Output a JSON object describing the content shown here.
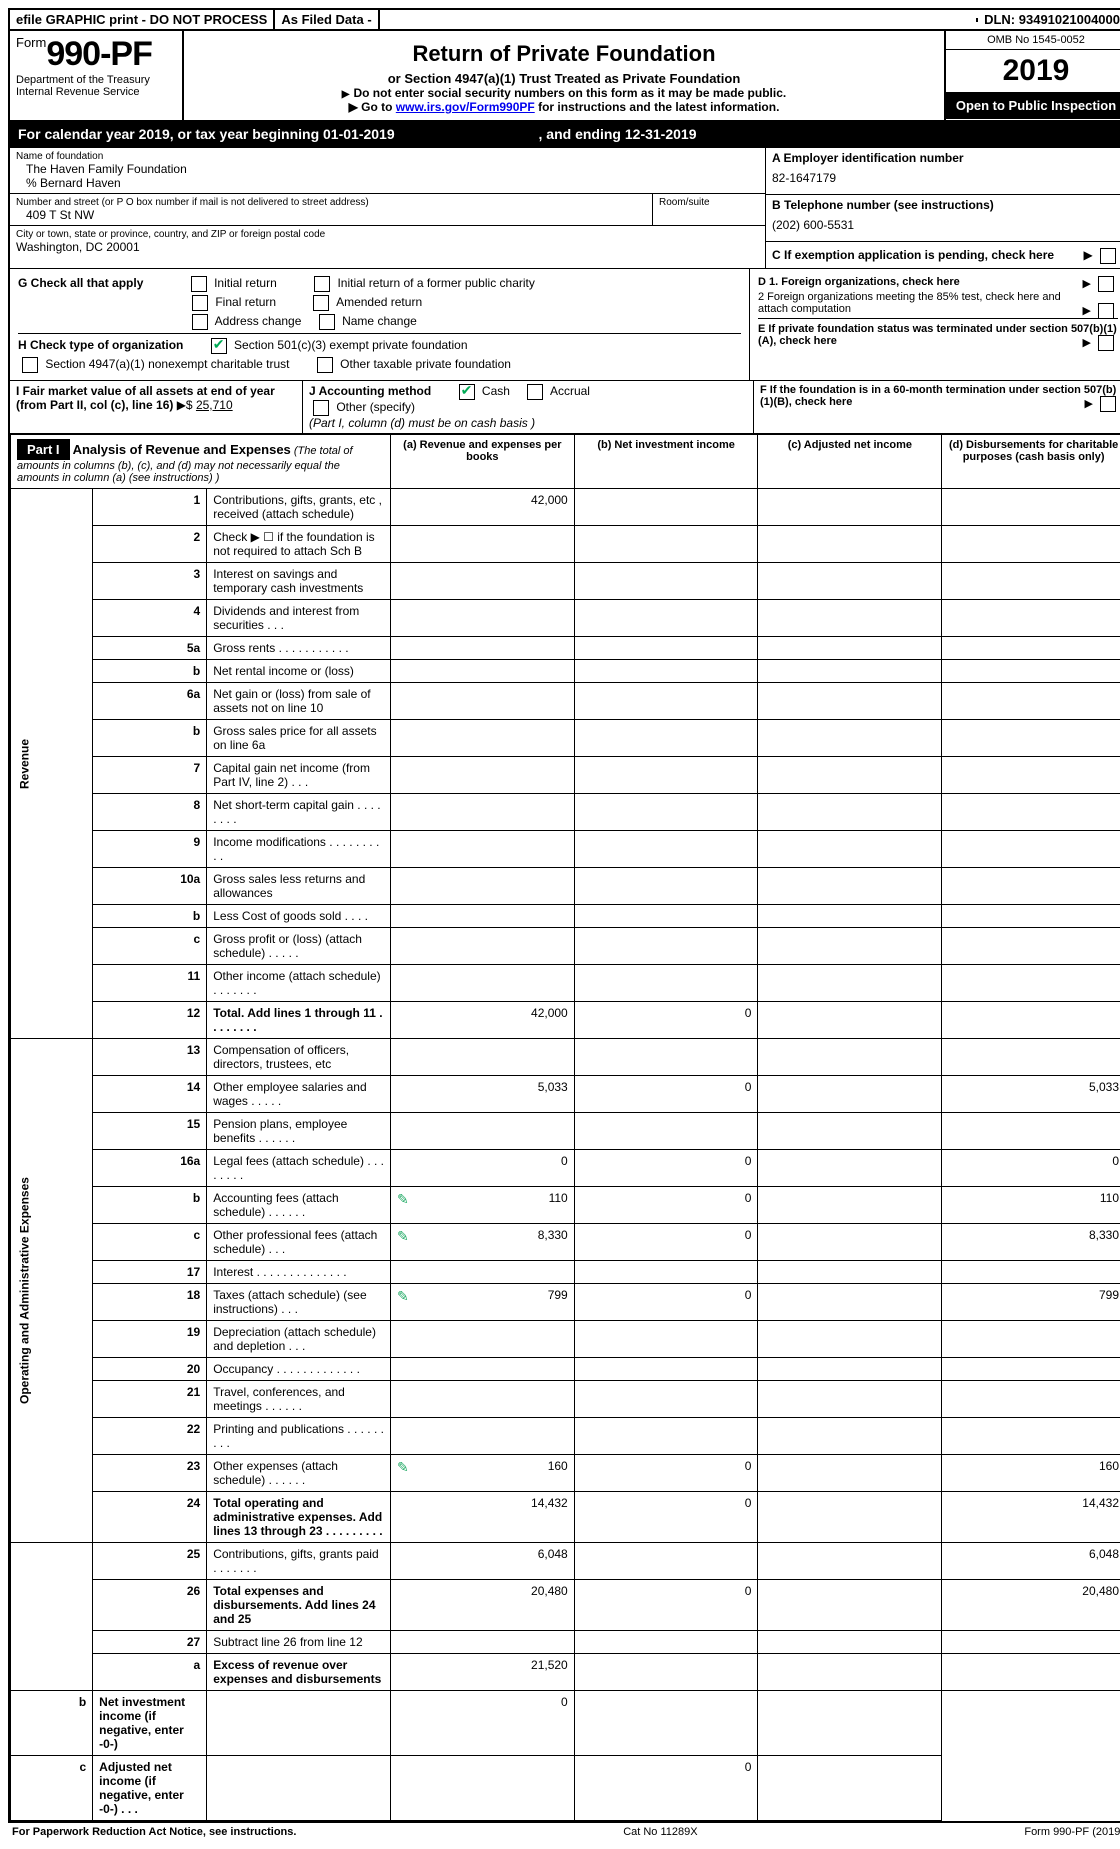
{
  "topbar": {
    "efile": "efile GRAPHIC print - DO NOT PROCESS",
    "asfiled": "As Filed Data -",
    "dln_label": "DLN:",
    "dln": "93491021004000"
  },
  "header": {
    "form_prefix": "Form",
    "form_no": "990-PF",
    "dept": "Department of the Treasury",
    "irs": "Internal Revenue Service",
    "title": "Return of Private Foundation",
    "subtitle": "or Section 4947(a)(1) Trust Treated as Private Foundation",
    "note1": "Do not enter social security numbers on this form as it may be made public.",
    "note2_pre": "Go to ",
    "note2_link": "www.irs.gov/Form990PF",
    "note2_post": " for instructions and the latest information.",
    "omb": "OMB No 1545-0052",
    "year": "2019",
    "open": "Open to Public Inspection"
  },
  "calendar": {
    "text": "For calendar year 2019, or tax year beginning 01-01-2019",
    "ending_lbl": ", and ending ",
    "ending": "12-31-2019"
  },
  "entity": {
    "name_lbl": "Name of foundation",
    "name": "The Haven Family Foundation",
    "co": "% Bernard Haven",
    "addr_lbl": "Number and street (or P O  box number if mail is not delivered to street address)",
    "addr": "409 T St NW",
    "room_lbl": "Room/suite",
    "city_lbl": "City or town, state or province, country, and ZIP or foreign postal code",
    "city": "Washington, DC  20001",
    "a_lbl": "A Employer identification number",
    "a_val": "82-1647179",
    "b_lbl": "B Telephone number (see instructions)",
    "b_val": "(202) 600-5531",
    "c_lbl": "C If exemption application is pending, check here"
  },
  "g": {
    "lbl": "G Check all that apply",
    "opts": [
      "Initial return",
      "Initial return of a former public charity",
      "Final return",
      "Amended return",
      "Address change",
      "Name change"
    ]
  },
  "h": {
    "lbl": "H Check type of organization",
    "opt1": "Section 501(c)(3) exempt private foundation",
    "opt2": "Section 4947(a)(1) nonexempt charitable trust",
    "opt3": "Other taxable private foundation"
  },
  "i": {
    "lbl": "I Fair market value of all assets at end of year (from Part II, col  (c), line 16) ",
    "amt_prefix": "▶$ ",
    "amt": "25,710"
  },
  "j": {
    "lbl": "J Accounting method",
    "cash": "Cash",
    "accrual": "Accrual",
    "other": "Other (specify)",
    "note": "(Part I, column (d) must be on cash basis )"
  },
  "d": {
    "d1": "D 1. Foreign organizations, check here",
    "d2": "2  Foreign organizations meeting the 85% test, check here and attach computation",
    "e": "E  If private foundation status was terminated under section 507(b)(1)(A), check here",
    "f": "F  If the foundation is in a 60-month termination under section 507(b)(1)(B), check here"
  },
  "part1": {
    "label": "Part I",
    "title": "Analysis of Revenue and Expenses",
    "title_note": "(The total of amounts in columns (b), (c), and (d) may not necessarily equal the amounts in column (a) (see instructions) )",
    "col_a": "(a)  Revenue and expenses per books",
    "col_b": "(b)  Net investment income",
    "col_c": "(c)  Adjusted net income",
    "col_d": "(d)  Disbursements for charitable purposes (cash basis only)",
    "side_rev": "Revenue",
    "side_exp": "Operating and Administrative Expenses",
    "rows": [
      {
        "n": "1",
        "d": "Contributions, gifts, grants, etc , received (attach schedule)",
        "a": "42,000",
        "b": "",
        "c": "",
        "dd": ""
      },
      {
        "n": "2",
        "d": "Check ▶ ☐ if the foundation is not required to attach Sch B",
        "a": "",
        "b": "",
        "c": "",
        "dd": ""
      },
      {
        "n": "3",
        "d": "Interest on savings and temporary cash investments",
        "a": "",
        "b": "",
        "c": "",
        "dd": ""
      },
      {
        "n": "4",
        "d": "Dividends and interest from securities   .   .   .",
        "a": "",
        "b": "",
        "c": "",
        "dd": ""
      },
      {
        "n": "5a",
        "d": "Gross rents   .   .   .   .   .   .   .   .   .   .   .",
        "a": "",
        "b": "",
        "c": "",
        "dd": ""
      },
      {
        "n": "b",
        "d": "Net rental income or (loss)  ",
        "a": "",
        "b": "",
        "c": "",
        "dd": ""
      },
      {
        "n": "6a",
        "d": "Net gain or (loss) from sale of assets not on line 10",
        "a": "",
        "b": "",
        "c": "",
        "dd": ""
      },
      {
        "n": "b",
        "d": "Gross sales price for all assets on line 6a",
        "a": "",
        "b": "",
        "c": "",
        "dd": ""
      },
      {
        "n": "7",
        "d": "Capital gain net income (from Part IV, line 2)   .   .   .",
        "a": "",
        "b": "",
        "c": "",
        "dd": ""
      },
      {
        "n": "8",
        "d": "Net short-term capital gain   .   .   .   .   .   .   .   .",
        "a": "",
        "b": "",
        "c": "",
        "dd": ""
      },
      {
        "n": "9",
        "d": "Income modifications   .   .   .   .   .   .   .   .   .   .",
        "a": "",
        "b": "",
        "c": "",
        "dd": ""
      },
      {
        "n": "10a",
        "d": "Gross sales less returns and allowances",
        "a": "",
        "b": "",
        "c": "",
        "dd": ""
      },
      {
        "n": "b",
        "d": "Less  Cost of goods sold   .   .   .   .",
        "a": "",
        "b": "",
        "c": "",
        "dd": ""
      },
      {
        "n": "c",
        "d": "Gross profit or (loss) (attach schedule)   .   .   .   .   .",
        "a": "",
        "b": "",
        "c": "",
        "dd": ""
      },
      {
        "n": "11",
        "d": "Other income (attach schedule)   .   .   .   .   .   .   .",
        "a": "",
        "b": "",
        "c": "",
        "dd": ""
      },
      {
        "n": "12",
        "d": "Total. Add lines 1 through 11   .   .   .   .   .   .   .   .",
        "a": "42,000",
        "b": "0",
        "c": "",
        "dd": "",
        "bold": true
      },
      {
        "n": "13",
        "d": "Compensation of officers, directors, trustees, etc",
        "a": "",
        "b": "",
        "c": "",
        "dd": ""
      },
      {
        "n": "14",
        "d": "Other employee salaries and wages   .   .   .   .   .",
        "a": "5,033",
        "b": "0",
        "c": "",
        "dd": "5,033"
      },
      {
        "n": "15",
        "d": "Pension plans, employee benefits   .   .   .   .   .   .",
        "a": "",
        "b": "",
        "c": "",
        "dd": ""
      },
      {
        "n": "16a",
        "d": "Legal fees (attach schedule)   .   .   .   .   .   .   .   .",
        "a": "0",
        "b": "0",
        "c": "",
        "dd": "0"
      },
      {
        "n": "b",
        "d": "Accounting fees (attach schedule)   .   .   .   .   .   .",
        "a": "110",
        "b": "0",
        "c": "",
        "dd": "110",
        "att": true
      },
      {
        "n": "c",
        "d": "Other professional fees (attach schedule)   .   .   .",
        "a": "8,330",
        "b": "0",
        "c": "",
        "dd": "8,330",
        "att": true
      },
      {
        "n": "17",
        "d": "Interest   .   .   .   .   .   .   .   .   .   .   .   .   .   .",
        "a": "",
        "b": "",
        "c": "",
        "dd": ""
      },
      {
        "n": "18",
        "d": "Taxes (attach schedule) (see instructions)   .   .   .",
        "a": "799",
        "b": "0",
        "c": "",
        "dd": "799",
        "att": true
      },
      {
        "n": "19",
        "d": "Depreciation (attach schedule) and depletion   .   .   .",
        "a": "",
        "b": "",
        "c": "",
        "dd": ""
      },
      {
        "n": "20",
        "d": "Occupancy   .   .   .   .   .   .   .   .   .   .   .   .   .",
        "a": "",
        "b": "",
        "c": "",
        "dd": ""
      },
      {
        "n": "21",
        "d": "Travel, conferences, and meetings   .   .   .   .   .   .",
        "a": "",
        "b": "",
        "c": "",
        "dd": ""
      },
      {
        "n": "22",
        "d": "Printing and publications   .   .   .   .   .   .   .   .   .",
        "a": "",
        "b": "",
        "c": "",
        "dd": ""
      },
      {
        "n": "23",
        "d": "Other expenses (attach schedule)   .   .   .   .   .   .",
        "a": "160",
        "b": "0",
        "c": "",
        "dd": "160",
        "att": true
      },
      {
        "n": "24",
        "d": "Total operating and administrative expenses. Add lines 13 through 23   .   .   .   .   .   .   .   .   .",
        "a": "14,432",
        "b": "0",
        "c": "",
        "dd": "14,432",
        "bold": true
      },
      {
        "n": "25",
        "d": "Contributions, gifts, grants paid   .   .   .   .   .   .   .",
        "a": "6,048",
        "b": "",
        "c": "",
        "dd": "6,048"
      },
      {
        "n": "26",
        "d": "Total expenses and disbursements. Add lines 24 and 25",
        "a": "20,480",
        "b": "0",
        "c": "",
        "dd": "20,480",
        "bold": true
      },
      {
        "n": "27",
        "d": "Subtract line 26 from line 12",
        "a": "",
        "b": "",
        "c": "",
        "dd": ""
      },
      {
        "n": "a",
        "d": "Excess of revenue over expenses and disbursements",
        "a": "21,520",
        "b": "",
        "c": "",
        "dd": "",
        "bold": true
      },
      {
        "n": "b",
        "d": "Net investment income (if negative, enter -0-)",
        "a": "",
        "b": "0",
        "c": "",
        "dd": "",
        "bold": true
      },
      {
        "n": "c",
        "d": "Adjusted net income (if negative, enter -0-)   .   .   .",
        "a": "",
        "b": "",
        "c": "0",
        "dd": "",
        "bold": true
      }
    ]
  },
  "footer": {
    "left": "For Paperwork Reduction Act Notice, see instructions.",
    "mid": "Cat  No  11289X",
    "right": "Form 990-PF (2019)"
  }
}
